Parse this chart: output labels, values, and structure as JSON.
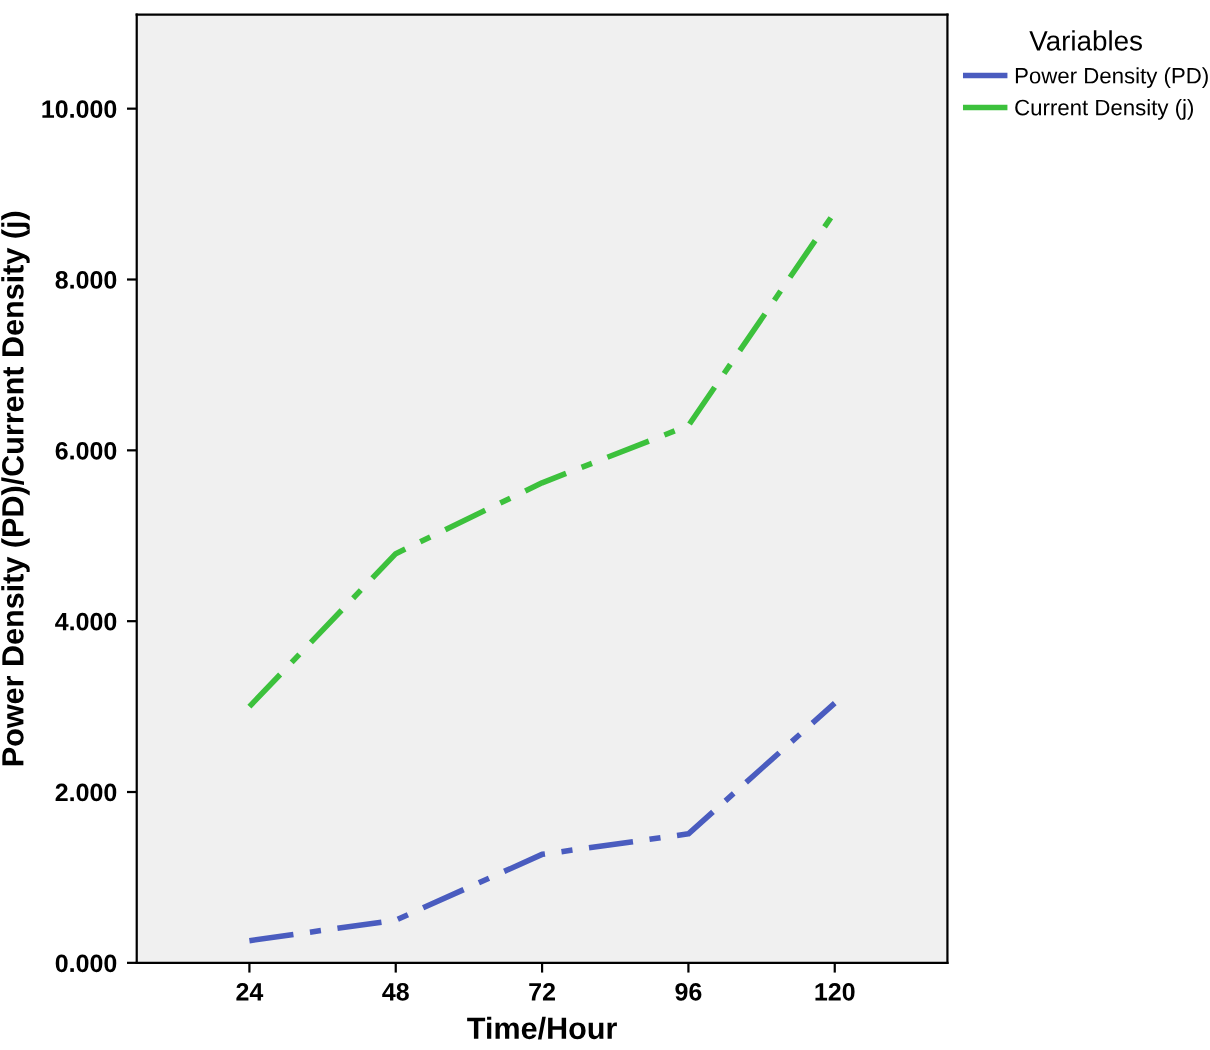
{
  "chart_data": {
    "type": "line",
    "xlabel": "Time/Hour",
    "ylabel": "Power Density (PD)/Current Density (j)",
    "legend_title": "Variables",
    "categories": [
      "24",
      "48",
      "72",
      "96",
      "120"
    ],
    "series": [
      {
        "name": "Power Density (PD)",
        "color": "#4a5cbf",
        "values": [
          0.26,
          0.5,
          1.27,
          1.51,
          3.04
        ]
      },
      {
        "name": "Current Density (j)",
        "color": "#3cc13c",
        "values": [
          3.0,
          4.79,
          5.62,
          6.29,
          8.79
        ]
      }
    ],
    "ylim": [
      0,
      11.1
    ],
    "yticks": [
      {
        "value": 0,
        "label": "0.000"
      },
      {
        "value": 2,
        "label": "2.000"
      },
      {
        "value": 4,
        "label": "4.000"
      },
      {
        "value": 6,
        "label": "6.000"
      },
      {
        "value": 8,
        "label": "8.000"
      },
      {
        "value": 10,
        "label": "10.000"
      }
    ],
    "grid": false,
    "legend": "top right",
    "line_style": "dashdot",
    "marker": "none"
  }
}
